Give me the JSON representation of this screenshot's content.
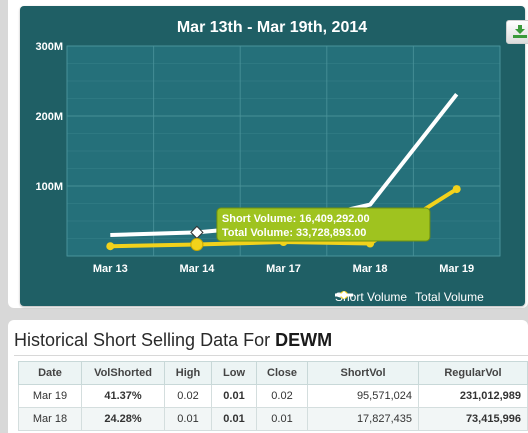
{
  "chart": {
    "title": "Mar 13th - Mar 19th, 2014",
    "tooltip": {
      "short_line": "Short Volume: 16,409,292.00",
      "total_line": "Total Volume: 33,728,893.00"
    },
    "colors": {
      "background": "#1f5f65",
      "short": "#f2d21b",
      "total": "#ffffff",
      "tooltip_bg": "#9fc31f"
    },
    "legend": {
      "position": "bottom-right",
      "short_label": "Short Volume",
      "total_label": "Total Volume"
    },
    "download_icon": "download-icon"
  },
  "chart_data": {
    "type": "line",
    "categories": [
      "Mar 13",
      "Mar 14",
      "Mar 17",
      "Mar 18",
      "Mar 19"
    ],
    "yticks": [
      "300M",
      "200M",
      "100M"
    ],
    "ylim": [
      0,
      300000000
    ],
    "grid": true,
    "title": "Mar 13th - Mar 19th, 2014",
    "series": [
      {
        "name": "Short Volume",
        "values": [
          14000000,
          16409292,
          20000000,
          17827435,
          95571024
        ]
      },
      {
        "name": "Total Volume",
        "values": [
          30000000,
          33728893,
          45000000,
          73415996,
          231012989
        ]
      }
    ]
  },
  "history": {
    "title_prefix": "Historical Short Selling Data For ",
    "ticker": "DEWM",
    "columns": [
      "Date",
      "VolShorted",
      "High",
      "Low",
      "Close",
      "ShortVol",
      "RegularVol"
    ],
    "rows": [
      [
        "Mar 19",
        "41.37%",
        "0.02",
        "0.01",
        "0.02",
        "95,571,024",
        "231,012,989"
      ],
      [
        "Mar 18",
        "24.28%",
        "0.01",
        "0.01",
        "0.01",
        "17,827,435",
        "73,415,996"
      ]
    ]
  }
}
